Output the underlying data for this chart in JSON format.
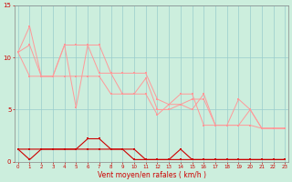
{
  "xlabel": "Vent moyen/en rafales ( km/h )",
  "x": [
    0,
    1,
    2,
    3,
    4,
    5,
    6,
    7,
    8,
    9,
    10,
    11,
    12,
    13,
    14,
    15,
    16,
    17,
    18,
    19,
    20,
    21,
    22,
    23
  ],
  "line1_y": [
    10.5,
    13.0,
    8.2,
    8.2,
    11.2,
    11.2,
    11.2,
    8.5,
    8.5,
    8.5,
    8.5,
    8.5,
    6.0,
    5.5,
    5.5,
    6.0,
    6.0,
    3.5,
    3.5,
    6.0,
    5.0,
    3.2,
    3.2,
    3.2
  ],
  "line2_y": [
    10.5,
    11.2,
    8.2,
    8.2,
    11.2,
    5.2,
    11.2,
    11.2,
    8.5,
    6.5,
    6.5,
    8.0,
    5.0,
    5.0,
    5.5,
    5.0,
    6.5,
    3.5,
    3.5,
    3.5,
    5.0,
    3.2,
    3.2,
    3.2
  ],
  "line3_y": [
    10.5,
    8.2,
    8.2,
    8.2,
    8.2,
    8.2,
    8.2,
    8.2,
    6.5,
    6.5,
    6.5,
    6.5,
    4.5,
    5.5,
    6.5,
    6.5,
    3.5,
    3.5,
    3.5,
    3.5,
    3.5,
    3.2,
    3.2,
    3.2
  ],
  "line4_y": [
    1.2,
    1.2,
    1.2,
    1.2,
    1.2,
    1.2,
    2.2,
    2.2,
    1.2,
    1.2,
    1.2,
    0.2,
    0.2,
    0.2,
    0.2,
    0.2,
    0.2,
    0.2,
    0.2,
    0.2,
    0.2,
    0.2,
    0.2,
    0.2
  ],
  "line5_y": [
    1.2,
    0.2,
    1.2,
    1.2,
    1.2,
    1.2,
    1.2,
    1.2,
    1.2,
    1.2,
    0.2,
    0.2,
    0.2,
    0.2,
    1.2,
    0.2,
    0.2,
    0.2,
    0.2,
    0.2,
    0.2,
    0.2,
    0.2,
    0.2
  ],
  "color_light": "#ff9999",
  "color_dark": "#cc0000",
  "bg_color": "#cceedd",
  "grid_color": "#99cccc",
  "ylim": [
    0,
    15
  ],
  "yticks": [
    0,
    5,
    10,
    15
  ],
  "xticks": [
    0,
    1,
    2,
    3,
    4,
    5,
    6,
    7,
    8,
    9,
    10,
    11,
    12,
    13,
    14,
    15,
    16,
    17,
    18,
    19,
    20,
    21,
    22,
    23
  ],
  "marker": "s",
  "markersize": 1.8,
  "lw_light": 0.7,
  "lw_dark": 0.8
}
